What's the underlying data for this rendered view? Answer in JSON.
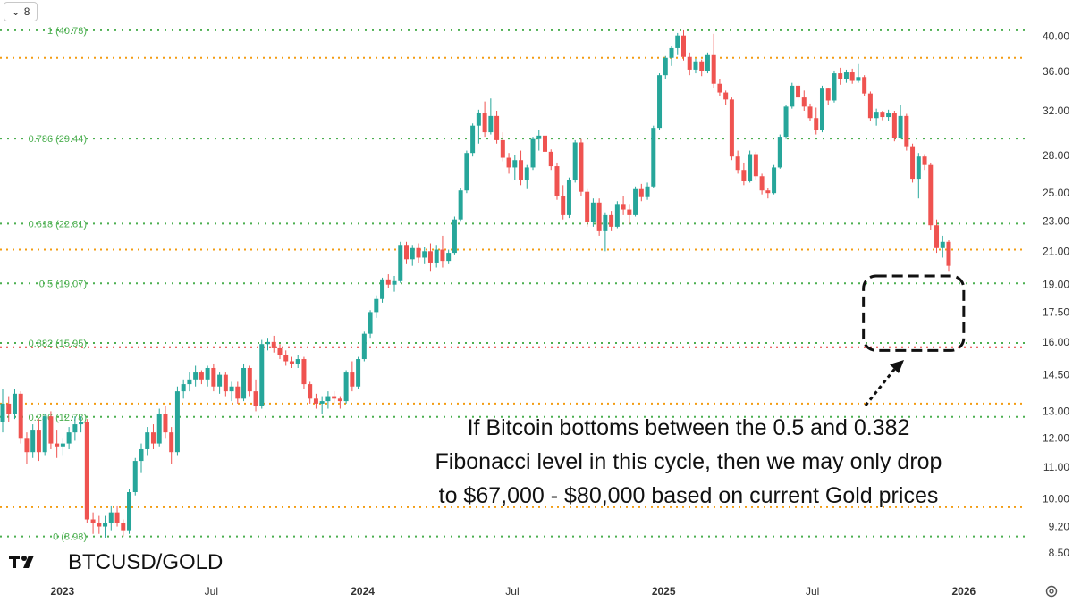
{
  "toolbar": {
    "collapse_count": "8",
    "collapse_icon": "chevron-down-icon"
  },
  "symbol": {
    "title": "BTCUSD/GOLD",
    "logo": "tradingview-logo"
  },
  "annotation": {
    "lines": [
      "If Bitcoin bottoms between the 0.5 and 0.382",
      "Fibonacci level in this cycle, then we may only drop",
      "to $67,000 - $80,000 based on current Gold prices"
    ]
  },
  "settings_icon": "gear-icon",
  "colors": {
    "up": "#26a69a",
    "down": "#ef5350",
    "fib": "#4caf50",
    "support": "#f39c12",
    "key_level": "#e53935",
    "text": "#333333"
  },
  "chart_data": {
    "type": "candlestick",
    "title": "BTCUSD/GOLD",
    "y_scale": "log",
    "ylim": [
      8.3,
      42.5
    ],
    "xlim": [
      "2022-10-17",
      "2026-03-15"
    ],
    "y_ticks": [
      "40.00",
      "36.00",
      "32.00",
      "28.00",
      "25.00",
      "23.00",
      "21.00",
      "19.00",
      "17.50",
      "16.00",
      "14.50",
      "13.00",
      "12.00",
      "11.00",
      "10.00",
      "9.20",
      "8.50"
    ],
    "x_ticks": [
      {
        "label": "2023",
        "date": "2023-01-01",
        "bold": true
      },
      {
        "label": "Jul",
        "date": "2023-07-01",
        "bold": false
      },
      {
        "label": "2024",
        "date": "2024-01-01",
        "bold": true
      },
      {
        "label": "Jul",
        "date": "2024-07-01",
        "bold": false
      },
      {
        "label": "2025",
        "date": "2025-01-01",
        "bold": true
      },
      {
        "label": "Jul",
        "date": "2025-07-01",
        "bold": false
      },
      {
        "label": "2026",
        "date": "2026-01-01",
        "bold": true
      }
    ],
    "fib_levels": [
      {
        "ratio": "1",
        "value": 40.73,
        "label": "1 (40.73)"
      },
      {
        "ratio": "0.786",
        "value": 29.44,
        "label": "0.786 (29.44)"
      },
      {
        "ratio": "0.618",
        "value": 22.81,
        "label": "0.618 (22.81)"
      },
      {
        "ratio": "0.5",
        "value": 19.07,
        "label": "0.5 (19.07)"
      },
      {
        "ratio": "0.382",
        "value": 15.95,
        "label": "0.382 (15.95)"
      },
      {
        "ratio": "0.236",
        "value": 12.78,
        "label": "0.236 (12.78)"
      },
      {
        "ratio": "0",
        "value": 8.93,
        "label": "0 (8.93)"
      }
    ],
    "support_levels": [
      37.5,
      21.1,
      13.3,
      9.75
    ],
    "key_level": 15.75,
    "highlight_box": {
      "from_date": "2025-09-01",
      "to_date": "2026-01-01",
      "low": 15.6,
      "high": 19.5
    },
    "series": [
      {
        "values": [
          [
            12.6,
            13.9,
            12.2,
            13.3
          ],
          [
            13.3,
            13.6,
            12.6,
            12.9
          ],
          [
            12.9,
            13.9,
            12.7,
            13.7
          ],
          [
            13.7,
            13.8,
            11.8,
            12.0
          ],
          [
            12.0,
            12.2,
            11.1,
            11.5
          ],
          [
            11.5,
            12.5,
            11.3,
            12.3
          ],
          [
            12.3,
            12.7,
            11.2,
            11.5
          ],
          [
            11.5,
            12.9,
            11.4,
            12.8
          ],
          [
            12.8,
            13.0,
            11.6,
            11.8
          ],
          [
            11.8,
            12.3,
            11.3,
            11.7
          ],
          [
            11.7,
            12.0,
            11.4,
            11.8
          ],
          [
            11.8,
            12.4,
            11.6,
            12.2
          ],
          [
            12.2,
            12.8,
            11.9,
            12.5
          ],
          [
            12.5,
            12.8,
            12.2,
            12.6
          ],
          [
            12.6,
            12.7,
            9.3,
            9.4
          ],
          [
            9.4,
            9.6,
            9.0,
            9.3
          ],
          [
            9.3,
            9.5,
            9.0,
            9.2
          ],
          [
            9.2,
            9.5,
            8.9,
            9.3
          ],
          [
            9.3,
            9.8,
            9.1,
            9.6
          ],
          [
            9.6,
            9.8,
            9.2,
            9.3
          ],
          [
            9.3,
            9.4,
            8.93,
            9.1
          ],
          [
            9.1,
            10.3,
            9.0,
            10.2
          ],
          [
            10.2,
            11.3,
            10.1,
            11.2
          ],
          [
            11.2,
            11.8,
            10.8,
            11.6
          ],
          [
            11.6,
            12.4,
            11.4,
            12.2
          ],
          [
            12.2,
            12.5,
            11.6,
            11.8
          ],
          [
            11.8,
            13.1,
            11.7,
            12.9
          ],
          [
            12.9,
            13.2,
            12.0,
            12.2
          ],
          [
            12.2,
            12.4,
            11.1,
            11.5
          ],
          [
            11.5,
            14.0,
            11.4,
            13.8
          ],
          [
            13.8,
            14.3,
            13.5,
            14.1
          ],
          [
            14.1,
            14.6,
            13.8,
            14.3
          ],
          [
            14.3,
            14.9,
            14.0,
            14.6
          ],
          [
            14.6,
            14.7,
            14.1,
            14.3
          ],
          [
            14.3,
            14.9,
            14.0,
            14.8
          ],
          [
            14.8,
            15.0,
            13.8,
            14.0
          ],
          [
            14.0,
            14.6,
            13.7,
            14.5
          ],
          [
            14.5,
            14.6,
            13.6,
            13.8
          ],
          [
            13.8,
            14.2,
            13.4,
            14.0
          ],
          [
            14.0,
            14.2,
            13.3,
            13.5
          ],
          [
            13.5,
            15.0,
            13.4,
            14.8
          ],
          [
            14.8,
            14.9,
            13.6,
            13.8
          ],
          [
            13.8,
            14.3,
            13.0,
            13.2
          ],
          [
            13.2,
            16.1,
            13.1,
            15.9
          ],
          [
            15.9,
            16.2,
            15.6,
            16.0
          ],
          [
            16.0,
            16.3,
            15.5,
            15.7
          ],
          [
            15.7,
            15.9,
            15.2,
            15.4
          ],
          [
            15.4,
            15.6,
            14.9,
            15.1
          ],
          [
            15.1,
            15.3,
            14.8,
            15.0
          ],
          [
            15.0,
            15.4,
            14.8,
            15.2
          ],
          [
            15.2,
            15.3,
            13.9,
            14.1
          ],
          [
            14.1,
            14.2,
            13.3,
            13.5
          ],
          [
            13.5,
            13.7,
            13.1,
            13.3
          ],
          [
            13.3,
            13.6,
            12.9,
            13.4
          ],
          [
            13.4,
            13.8,
            13.1,
            13.6
          ],
          [
            13.6,
            13.8,
            13.3,
            13.5
          ],
          [
            13.5,
            13.6,
            13.1,
            13.4
          ],
          [
            13.4,
            14.7,
            13.3,
            14.6
          ],
          [
            14.6,
            15.1,
            13.8,
            14.0
          ],
          [
            14.0,
            15.3,
            13.9,
            15.2
          ],
          [
            15.2,
            16.5,
            15.1,
            16.4
          ],
          [
            16.4,
            17.6,
            16.2,
            17.5
          ],
          [
            17.5,
            18.4,
            17.2,
            18.2
          ],
          [
            18.2,
            19.4,
            18.0,
            19.3
          ],
          [
            19.3,
            19.6,
            18.8,
            19.0
          ],
          [
            19.0,
            19.5,
            18.6,
            19.2
          ],
          [
            19.2,
            21.6,
            19.1,
            21.4
          ],
          [
            21.4,
            21.6,
            20.2,
            20.5
          ],
          [
            20.5,
            21.4,
            20.1,
            21.2
          ],
          [
            21.2,
            21.5,
            20.3,
            20.6
          ],
          [
            20.6,
            21.3,
            20.2,
            21.0
          ],
          [
            21.0,
            21.5,
            19.8,
            20.3
          ],
          [
            20.3,
            21.4,
            20.0,
            21.1
          ],
          [
            21.1,
            22.0,
            20.0,
            20.4
          ],
          [
            20.4,
            21.1,
            20.2,
            20.9
          ],
          [
            20.9,
            23.3,
            20.8,
            23.1
          ],
          [
            23.1,
            25.4,
            23.0,
            25.2
          ],
          [
            25.2,
            28.4,
            25.0,
            28.2
          ],
          [
            28.2,
            30.8,
            27.9,
            30.6
          ],
          [
            30.6,
            32.1,
            29.0,
            31.8
          ],
          [
            31.8,
            32.9,
            29.6,
            30.0
          ],
          [
            30.0,
            33.2,
            29.8,
            31.5
          ],
          [
            31.5,
            32.0,
            29.0,
            29.3
          ],
          [
            29.3,
            30.0,
            27.5,
            27.8
          ],
          [
            27.8,
            28.2,
            26.5,
            27.0
          ],
          [
            27.0,
            28.0,
            26.0,
            27.6
          ],
          [
            27.6,
            28.4,
            25.6,
            26.0
          ],
          [
            26.0,
            27.2,
            25.3,
            27.0
          ],
          [
            27.0,
            29.6,
            26.8,
            29.4
          ],
          [
            29.4,
            30.2,
            28.4,
            29.7
          ],
          [
            29.7,
            30.4,
            28.0,
            28.3
          ],
          [
            28.3,
            28.5,
            26.8,
            27.1
          ],
          [
            27.1,
            27.4,
            24.5,
            24.8
          ],
          [
            24.8,
            25.6,
            23.1,
            23.4
          ],
          [
            23.4,
            26.2,
            23.2,
            26.0
          ],
          [
            26.0,
            29.3,
            25.8,
            29.1
          ],
          [
            29.1,
            29.4,
            24.8,
            25.1
          ],
          [
            25.1,
            25.3,
            22.6,
            22.9
          ],
          [
            22.9,
            24.6,
            22.6,
            24.3
          ],
          [
            24.3,
            24.6,
            22.0,
            22.3
          ],
          [
            22.3,
            23.6,
            21.0,
            23.4
          ],
          [
            23.4,
            23.7,
            22.3,
            22.6
          ],
          [
            22.6,
            24.4,
            22.5,
            24.2
          ],
          [
            24.2,
            24.8,
            23.4,
            23.8
          ],
          [
            23.8,
            24.2,
            22.8,
            23.4
          ],
          [
            23.4,
            25.5,
            23.3,
            25.3
          ],
          [
            25.3,
            25.7,
            24.4,
            24.7
          ],
          [
            24.7,
            25.8,
            24.5,
            25.5
          ],
          [
            25.5,
            30.6,
            25.4,
            30.4
          ],
          [
            30.4,
            35.8,
            30.2,
            35.6
          ],
          [
            35.6,
            37.7,
            35.2,
            37.5
          ],
          [
            37.5,
            38.8,
            36.6,
            38.6
          ],
          [
            38.6,
            40.4,
            37.8,
            40.1
          ],
          [
            40.1,
            40.73,
            37.2,
            37.6
          ],
          [
            37.6,
            38.1,
            35.6,
            36.2
          ],
          [
            36.2,
            37.4,
            35.8,
            37.1
          ],
          [
            37.1,
            37.3,
            35.5,
            36.0
          ],
          [
            36.0,
            38.1,
            35.8,
            37.8
          ],
          [
            37.8,
            40.3,
            34.3,
            34.7
          ],
          [
            34.7,
            35.2,
            33.4,
            33.8
          ],
          [
            33.8,
            34.0,
            32.6,
            33.1
          ],
          [
            33.1,
            33.3,
            27.6,
            27.9
          ],
          [
            27.9,
            28.4,
            26.5,
            26.8
          ],
          [
            26.8,
            27.4,
            25.6,
            25.9
          ],
          [
            25.9,
            28.4,
            25.8,
            28.1
          ],
          [
            28.1,
            28.3,
            26.0,
            26.3
          ],
          [
            26.3,
            26.5,
            24.9,
            25.2
          ],
          [
            25.2,
            25.4,
            24.6,
            25.0
          ],
          [
            25.0,
            27.2,
            24.9,
            27.0
          ],
          [
            27.0,
            29.8,
            26.9,
            29.6
          ],
          [
            29.6,
            32.6,
            29.4,
            32.4
          ],
          [
            32.4,
            34.8,
            32.2,
            34.5
          ],
          [
            34.5,
            34.8,
            33.0,
            33.3
          ],
          [
            33.3,
            34.0,
            32.0,
            32.4
          ],
          [
            32.4,
            32.7,
            31.0,
            31.3
          ],
          [
            31.3,
            32.3,
            29.8,
            30.2
          ],
          [
            30.2,
            34.5,
            30.0,
            34.2
          ],
          [
            34.2,
            34.3,
            32.6,
            33.0
          ],
          [
            33.0,
            36.1,
            32.8,
            35.8
          ],
          [
            35.8,
            36.4,
            34.6,
            35.2
          ],
          [
            35.2,
            36.2,
            34.8,
            35.9
          ],
          [
            35.9,
            36.3,
            34.7,
            35.0
          ],
          [
            35.0,
            36.8,
            34.8,
            35.4
          ],
          [
            35.4,
            35.6,
            33.4,
            33.7
          ],
          [
            33.7,
            33.9,
            31.0,
            31.3
          ],
          [
            31.3,
            32.2,
            30.6,
            31.9
          ],
          [
            31.9,
            32.0,
            31.1,
            31.4
          ],
          [
            31.4,
            32.1,
            31.0,
            31.8
          ],
          [
            31.8,
            32.0,
            29.2,
            29.5
          ],
          [
            29.5,
            32.6,
            29.4,
            31.5
          ],
          [
            31.5,
            31.7,
            28.4,
            28.7
          ],
          [
            28.7,
            29.0,
            25.8,
            26.1
          ],
          [
            26.1,
            28.2,
            24.6,
            27.9
          ],
          [
            27.9,
            28.1,
            26.8,
            27.2
          ],
          [
            27.2,
            27.4,
            22.4,
            22.7
          ],
          [
            22.7,
            23.1,
            20.9,
            21.2
          ],
          [
            21.2,
            22.0,
            20.6,
            21.6
          ],
          [
            21.6,
            21.7,
            19.8,
            20.1
          ]
        ]
      }
    ]
  }
}
